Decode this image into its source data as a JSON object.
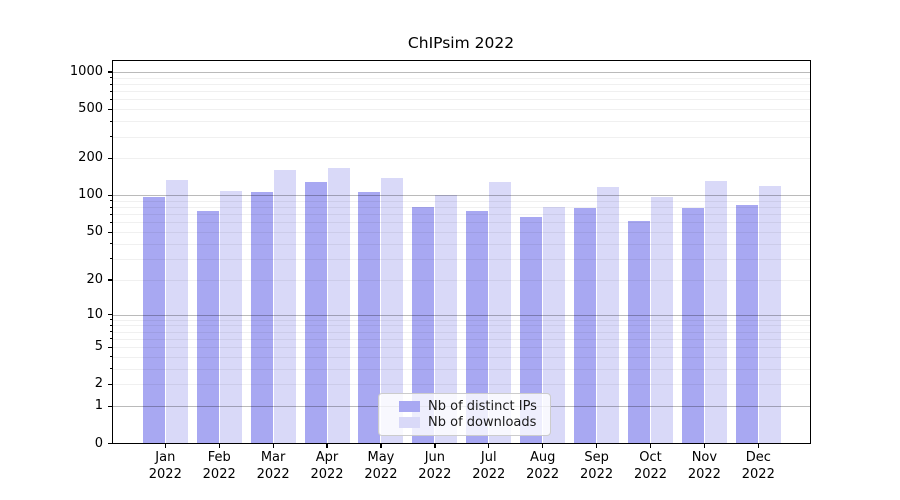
{
  "chart_data": {
    "type": "bar",
    "title": "ChIPsim 2022",
    "y_scale": "log-like: y position proportional to log10(1+value), 0 at baseline",
    "ylim": [
      0,
      1250
    ],
    "grid": {
      "major_values": [
        1,
        10,
        100,
        1000
      ],
      "major_color": "rgba(0,0,0,0.27)",
      "minor_color": "rgba(0,0,0,0.06)",
      "drawn_above_bars": true
    },
    "y_ticks": [
      {
        "v": 0,
        "label": "0"
      },
      {
        "v": 1,
        "label": "1"
      },
      {
        "v": 2,
        "label": "2"
      },
      {
        "v": 5,
        "label": "5"
      },
      {
        "v": 10,
        "label": "10"
      },
      {
        "v": 20,
        "label": "20"
      },
      {
        "v": 50,
        "label": "50"
      },
      {
        "v": 100,
        "label": "100"
      },
      {
        "v": 200,
        "label": "200"
      },
      {
        "v": 500,
        "label": "500"
      },
      {
        "v": 1000,
        "label": "1000"
      }
    ],
    "x_tick_labels": [
      {
        "line1": "Jan",
        "line2": "2022"
      },
      {
        "line1": "Feb",
        "line2": "2022"
      },
      {
        "line1": "Mar",
        "line2": "2022"
      },
      {
        "line1": "Apr",
        "line2": "2022"
      },
      {
        "line1": "May",
        "line2": "2022"
      },
      {
        "line1": "Jun",
        "line2": "2022"
      },
      {
        "line1": "Jul",
        "line2": "2022"
      },
      {
        "line1": "Aug",
        "line2": "2022"
      },
      {
        "line1": "Sep",
        "line2": "2022"
      },
      {
        "line1": "Oct",
        "line2": "2022"
      },
      {
        "line1": "Nov",
        "line2": "2022"
      },
      {
        "line1": "Dec",
        "line2": "2022"
      }
    ],
    "series": [
      {
        "name": "Nb of distinct IPs",
        "color": "#a8a8f2",
        "values": [
          97,
          75,
          106,
          129,
          107,
          80,
          74,
          66,
          79,
          62,
          79,
          84
        ]
      },
      {
        "name": "Nb of downloads",
        "color": "#d9d9f8",
        "values": [
          134,
          108,
          162,
          168,
          138,
          100,
          128,
          80,
          118,
          97,
          132,
          120
        ]
      }
    ],
    "legend": {
      "location": "lower center"
    }
  }
}
